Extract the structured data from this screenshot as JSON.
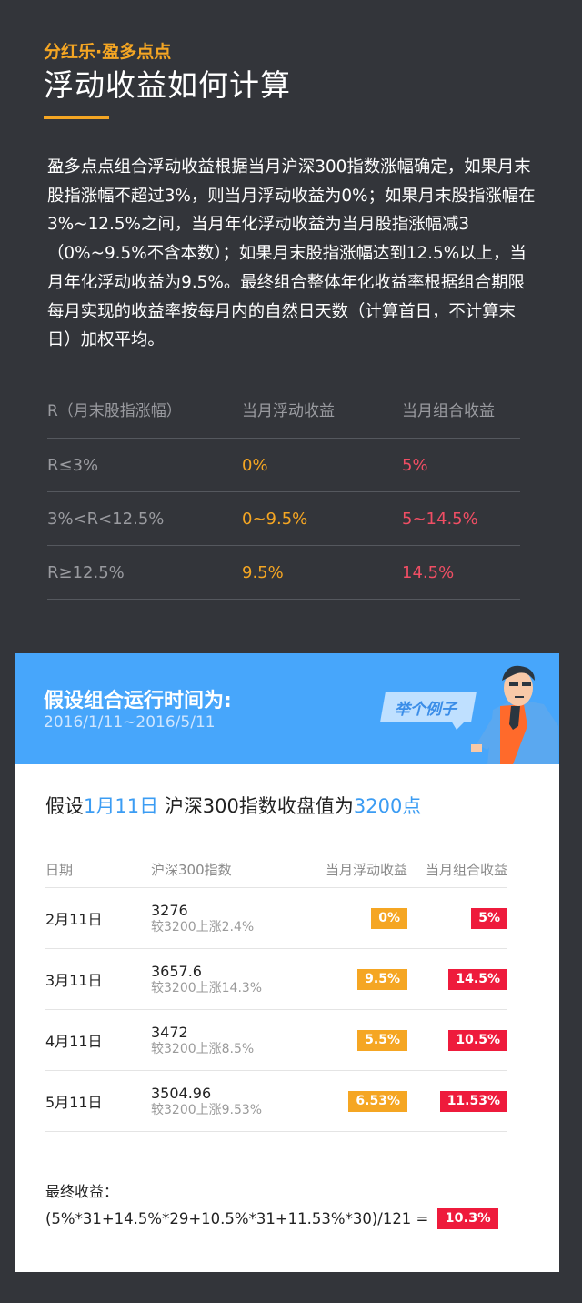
{
  "header": {
    "subtitle": "分红乐·盈多点点",
    "title": "浮动收益如何计算"
  },
  "intro": "盈多点点组合浮动收益根据当月沪深300指数涨幅确定，如果月末股指涨幅不超过3%，则当月浮动收益为0%；如果月末股指涨幅在3%~12.5%之间，当月年化浮动收益为当月股指涨幅减3（0%~9.5%不含本数）；如果月末股指涨幅达到12.5%以上，当月年化浮动收益为9.5%。最终组合整体年化收益率根据组合期限每月实现的收益率按每月内的自然日天数（计算首日，不计算末日）加权平均。",
  "rule_table": {
    "headers": [
      "R（月末股指涨幅）",
      "当月浮动收益",
      "当月组合收益"
    ],
    "rows": [
      {
        "r": "R≤3%",
        "floating": "0%",
        "combined": "5%"
      },
      {
        "r": "3%<R<12.5%",
        "floating": "0~9.5%",
        "combined": "5~14.5%"
      },
      {
        "r": "R≥12.5%",
        "floating": "9.5%",
        "combined": "14.5%"
      }
    ]
  },
  "example": {
    "banner_title": "假设组合运行时间为:",
    "banner_dates": "2016/1/11~2016/5/11",
    "bubble_label": "举个例子",
    "assume": {
      "prefix": "假设",
      "date": "1月11日",
      "middle": " 沪深300指数收盘值为",
      "value": "3200点"
    },
    "table": {
      "headers": [
        "日期",
        "沪深300指数",
        "当月浮动收益",
        "当月组合收益"
      ],
      "rows": [
        {
          "date": "2月11日",
          "index": "3276",
          "compare": "较3200上涨2.4%",
          "floating": "0%",
          "combined": "5%"
        },
        {
          "date": "3月11日",
          "index": "3657.6",
          "compare": "较3200上涨14.3%",
          "floating": "9.5%",
          "combined": "14.5%"
        },
        {
          "date": "4月11日",
          "index": "3472",
          "compare": "较3200上涨8.5%",
          "floating": "5.5%",
          "combined": "10.5%"
        },
        {
          "date": "5月11日",
          "index": "3504.96",
          "compare": "较3200上涨9.53%",
          "floating": "6.53%",
          "combined": "11.53%"
        }
      ]
    },
    "final_label": "最终收益：",
    "final_formula": "(5%*31+14.5%*29+10.5%*31+11.53%*30)/121 =",
    "final_result": "10.3%"
  },
  "colors": {
    "background": "#33353a",
    "accent_orange": "#f5a623",
    "accent_red": "#ee1b3c",
    "banner_blue": "#47a6fb",
    "highlight_blue": "#3b9cf3"
  }
}
